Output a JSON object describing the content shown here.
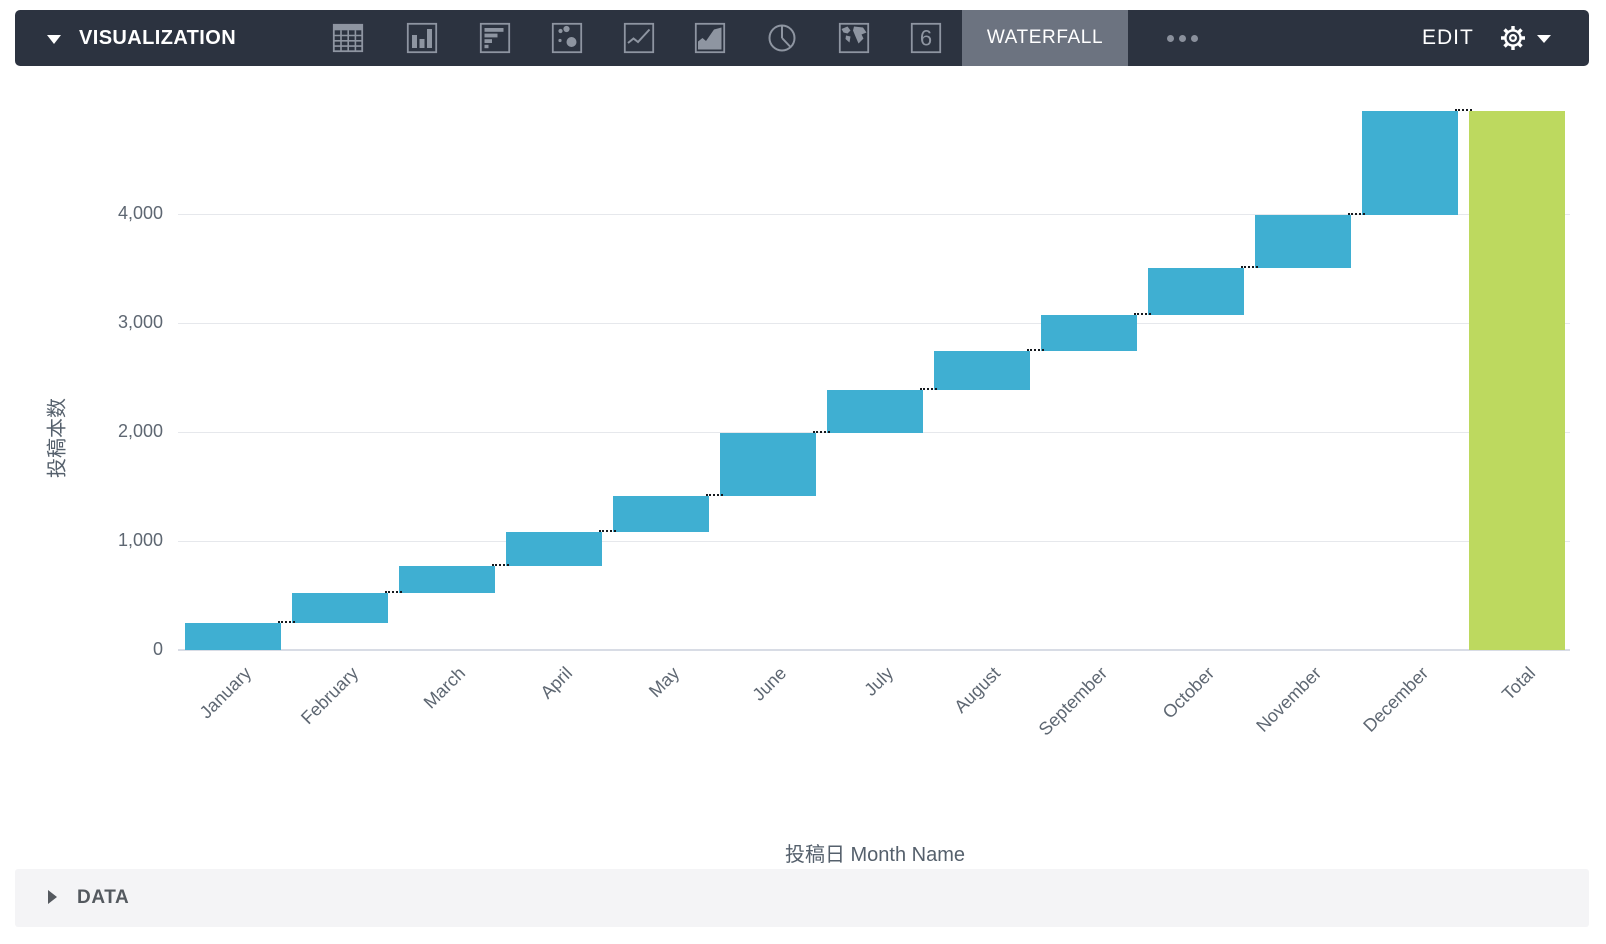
{
  "toolbar": {
    "section_label": "VISUALIZATION",
    "chart_type_icons": [
      "table-icon",
      "bar-chart-icon",
      "row-chart-icon",
      "scatter-plot-icon",
      "line-chart-icon",
      "area-chart-icon",
      "pie-chart-icon",
      "map-chart-icon",
      "single-value-icon"
    ],
    "active_type_label": "WATERFALL",
    "more_options_icon": "ellipsis-icon",
    "edit_label": "EDIT",
    "settings_icon": "gear-icon"
  },
  "chart_data": {
    "type": "waterfall",
    "xlabel": "投稿日 Month Name",
    "ylabel": "投稿本数",
    "yticks": [
      0,
      1000,
      2000,
      3000,
      4000
    ],
    "ytick_labels": [
      "0",
      "1,000",
      "2,000",
      "3,000",
      "4,000"
    ],
    "ylim": [
      0,
      5070
    ],
    "grid": true,
    "legend": "none",
    "categories": [
      "January",
      "February",
      "March",
      "April",
      "May",
      "June",
      "July",
      "August",
      "September",
      "October",
      "November",
      "December",
      "Total"
    ],
    "bars": [
      {
        "label": "January",
        "start": 0,
        "end": 250,
        "delta": 250,
        "kind": "step"
      },
      {
        "label": "February",
        "start": 250,
        "end": 525,
        "delta": 275,
        "kind": "step"
      },
      {
        "label": "March",
        "start": 525,
        "end": 770,
        "delta": 245,
        "kind": "step"
      },
      {
        "label": "April",
        "start": 770,
        "end": 1085,
        "delta": 315,
        "kind": "step"
      },
      {
        "label": "May",
        "start": 1085,
        "end": 1410,
        "delta": 325,
        "kind": "step"
      },
      {
        "label": "June",
        "start": 1410,
        "end": 1985,
        "delta": 575,
        "kind": "step"
      },
      {
        "label": "July",
        "start": 1985,
        "end": 2380,
        "delta": 395,
        "kind": "step"
      },
      {
        "label": "August",
        "start": 2380,
        "end": 2740,
        "delta": 360,
        "kind": "step"
      },
      {
        "label": "September",
        "start": 2740,
        "end": 3075,
        "delta": 335,
        "kind": "step"
      },
      {
        "label": "October",
        "start": 3075,
        "end": 3500,
        "delta": 425,
        "kind": "step"
      },
      {
        "label": "November",
        "start": 3500,
        "end": 3985,
        "delta": 485,
        "kind": "step"
      },
      {
        "label": "December",
        "start": 3985,
        "end": 4945,
        "delta": 960,
        "kind": "step"
      },
      {
        "label": "Total",
        "start": 0,
        "end": 4945,
        "delta": 4945,
        "kind": "total"
      }
    ],
    "colors": {
      "step": "#3FAFD2",
      "total": "#BDD95F"
    }
  },
  "data_panel": {
    "label": "DATA"
  },
  "colors": {
    "toolbar_bg": "#2C3340",
    "active_button_bg": "#6C7380",
    "icon_gray": "#8E95A1",
    "axis_text": "#5E6772",
    "gridline": "#E6E8EC"
  }
}
